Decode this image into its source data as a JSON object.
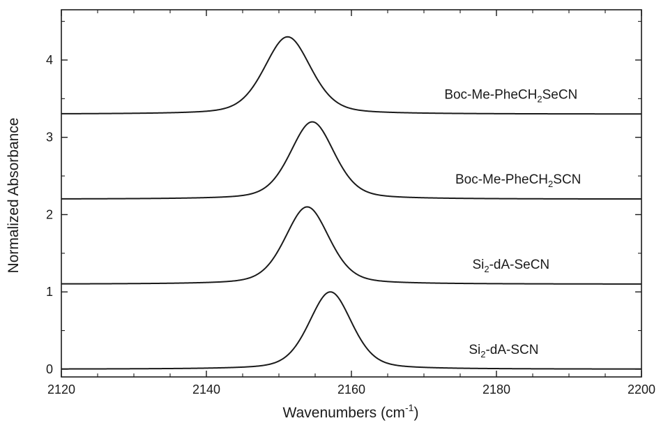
{
  "chart_data": {
    "type": "line",
    "xlabel": "Wavenumbers (cm",
    "xlabel_sup": "-1",
    "xlabel_end": ")",
    "ylabel": "Normalized Absorbance",
    "xlim": [
      2120,
      2200
    ],
    "ylim": [
      -0.1,
      4.65
    ],
    "x_ticks": [
      2120,
      2140,
      2160,
      2180,
      2200
    ],
    "x_tick_labels": [
      "2120",
      "2140",
      "2160",
      "2180",
      "2200"
    ],
    "y_ticks": [
      0,
      1,
      2,
      3,
      4
    ],
    "y_tick_labels": [
      "0",
      "1",
      "2",
      "3",
      "4"
    ],
    "grid": false,
    "line_color": "#1a1a1a",
    "series": [
      {
        "base": "Si",
        "sub": "2",
        "rest": "-dA-SCN",
        "label_x": 2181,
        "label_y": 0.2,
        "offset": 0.0,
        "center": 2157.1,
        "fwhm": 7.0,
        "amplitude": 1.0
      },
      {
        "base": "Si",
        "sub": "2",
        "rest": "-dA-SeCN",
        "label_x": 2182,
        "label_y": 1.3,
        "offset": 1.1,
        "center": 2153.9,
        "fwhm": 7.2,
        "amplitude": 1.0
      },
      {
        "base": "Boc-Me-PheCH",
        "sub": "2",
        "rest": "SCN",
        "label_x": 2183,
        "label_y": 2.4,
        "offset": 2.2,
        "center": 2154.6,
        "fwhm": 7.2,
        "amplitude": 1.0
      },
      {
        "base": "Boc-Me-PheCH",
        "sub": "2",
        "rest": "SeCN",
        "label_x": 2182,
        "label_y": 3.5,
        "offset": 3.3,
        "center": 2151.2,
        "fwhm": 7.6,
        "amplitude": 1.0
      }
    ]
  }
}
